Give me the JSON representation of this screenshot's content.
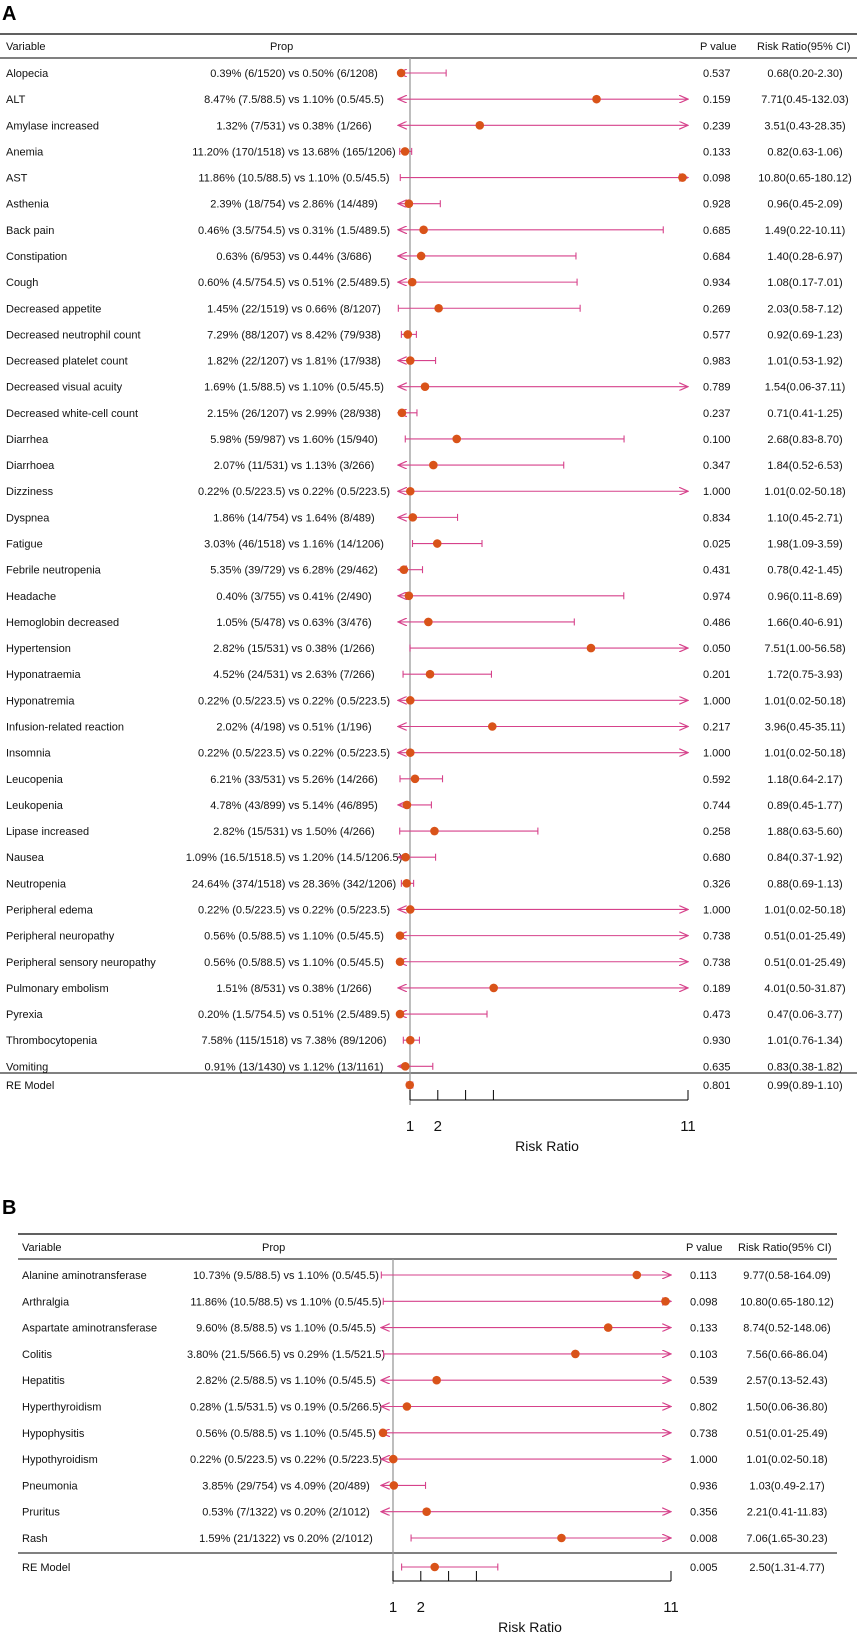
{
  "figure": {
    "aria": "Forest plots of risk ratios for adverse events"
  },
  "colors": {
    "ci": "#d6428b",
    "point": "#d95319",
    "rule": "#000000",
    "ref": "#9a9a9a"
  },
  "chart_data": [
    {
      "type": "forest",
      "panel_label": "A",
      "headers": {
        "variable": "Variable",
        "prop": "Prop",
        "p": "P value",
        "rr": "Risk Ratio(95% CI)"
      },
      "xlabel": "Risk Ratio",
      "ticks": [
        1,
        2,
        3,
        4,
        11
      ],
      "tick_labels": [
        "1",
        "2",
        "",
        "",
        "11"
      ],
      "xlim": [
        1,
        11
      ],
      "rows": [
        {
          "variable": "Alopecia",
          "prop": "0.39% (6/1520) vs 0.50% (6/1208)",
          "p": "0.537",
          "rr_text": "0.68(0.20-2.30)",
          "rr": 0.68,
          "lo": 0.2,
          "hi": 2.3
        },
        {
          "variable": "ALT",
          "prop": "8.47% (7.5/88.5) vs 1.10% (0.5/45.5)",
          "p": "0.159",
          "rr_text": "7.71(0.45-132.03)",
          "rr": 7.71,
          "lo": 0.45,
          "hi": 132.03
        },
        {
          "variable": "Amylase increased",
          "prop": "1.32% (7/531) vs 0.38% (1/266)",
          "p": "0.239",
          "rr_text": "3.51(0.43-28.35)",
          "rr": 3.51,
          "lo": 0.43,
          "hi": 28.35
        },
        {
          "variable": "Anemia",
          "prop": "11.20% (170/1518) vs 13.68% (165/1206)",
          "p": "0.133",
          "rr_text": "0.82(0.63-1.06)",
          "rr": 0.82,
          "lo": 0.63,
          "hi": 1.06
        },
        {
          "variable": "AST",
          "prop": "11.86% (10.5/88.5) vs 1.10% (0.5/45.5)",
          "p": "0.098",
          "rr_text": "10.80(0.65-180.12)",
          "rr": 10.8,
          "lo": 0.65,
          "hi": 180.12
        },
        {
          "variable": "Asthenia",
          "prop": "2.39% (18/754) vs 2.86% (14/489)",
          "p": "0.928",
          "rr_text": "0.96(0.45-2.09)",
          "rr": 0.96,
          "lo": 0.45,
          "hi": 2.09
        },
        {
          "variable": "Back pain",
          "prop": "0.46% (3.5/754.5) vs 0.31% (1.5/489.5)",
          "p": "0.685",
          "rr_text": "1.49(0.22-10.11)",
          "rr": 1.49,
          "lo": 0.22,
          "hi": 10.11
        },
        {
          "variable": "Constipation",
          "prop": "0.63% (6/953) vs 0.44% (3/686)",
          "p": "0.684",
          "rr_text": "1.40(0.28-6.97)",
          "rr": 1.4,
          "lo": 0.28,
          "hi": 6.97
        },
        {
          "variable": "Cough",
          "prop": "0.60% (4.5/754.5) vs 0.51% (2.5/489.5)",
          "p": "0.934",
          "rr_text": "1.08(0.17-7.01)",
          "rr": 1.08,
          "lo": 0.17,
          "hi": 7.01
        },
        {
          "variable": "Decreased appetite",
          "prop": "1.45% (22/1519) vs 0.66% (8/1207)",
          "p": "0.269",
          "rr_text": "2.03(0.58-7.12)",
          "rr": 2.03,
          "lo": 0.58,
          "hi": 7.12
        },
        {
          "variable": "Decreased neutrophil count",
          "prop": "7.29% (88/1207) vs 8.42% (79/938)",
          "p": "0.577",
          "rr_text": "0.92(0.69-1.23)",
          "rr": 0.92,
          "lo": 0.69,
          "hi": 1.23
        },
        {
          "variable": "Decreased platelet count",
          "prop": "1.82% (22/1207) vs 1.81% (17/938)",
          "p": "0.983",
          "rr_text": "1.01(0.53-1.92)",
          "rr": 1.01,
          "lo": 0.53,
          "hi": 1.92
        },
        {
          "variable": "Decreased visual acuity",
          "prop": "1.69% (1.5/88.5) vs 1.10% (0.5/45.5)",
          "p": "0.789",
          "rr_text": "1.54(0.06-37.11)",
          "rr": 1.54,
          "lo": 0.06,
          "hi": 37.11
        },
        {
          "variable": "Decreased white-cell count",
          "prop": "2.15% (26/1207) vs 2.99% (28/938)",
          "p": "0.237",
          "rr_text": "0.71(0.41-1.25)",
          "rr": 0.71,
          "lo": 0.41,
          "hi": 1.25
        },
        {
          "variable": "Diarrhea",
          "prop": "5.98% (59/987) vs 1.60% (15/940)",
          "p": "0.100",
          "rr_text": "2.68(0.83-8.70)",
          "rr": 2.68,
          "lo": 0.83,
          "hi": 8.7
        },
        {
          "variable": "Diarrhoea",
          "prop": "2.07% (11/531) vs 1.13% (3/266)",
          "p": "0.347",
          "rr_text": "1.84(0.52-6.53)",
          "rr": 1.84,
          "lo": 0.52,
          "hi": 6.53
        },
        {
          "variable": "Dizziness",
          "prop": "0.22% (0.5/223.5) vs 0.22% (0.5/223.5)",
          "p": "1.000",
          "rr_text": "1.01(0.02-50.18)",
          "rr": 1.01,
          "lo": 0.02,
          "hi": 50.18
        },
        {
          "variable": "Dyspnea",
          "prop": "1.86% (14/754) vs 1.64% (8/489)",
          "p": "0.834",
          "rr_text": "1.10(0.45-2.71)",
          "rr": 1.1,
          "lo": 0.45,
          "hi": 2.71
        },
        {
          "variable": "Fatigue",
          "prop": "3.03% (46/1518) vs 1.16% (14/1206)",
          "p": "0.025",
          "rr_text": "1.98(1.09-3.59)",
          "rr": 1.98,
          "lo": 1.09,
          "hi": 3.59
        },
        {
          "variable": "Febrile neutropenia",
          "prop": "5.35% (39/729) vs 6.28% (29/462)",
          "p": "0.431",
          "rr_text": "0.78(0.42-1.45)",
          "rr": 0.78,
          "lo": 0.42,
          "hi": 1.45
        },
        {
          "variable": "Headache",
          "prop": "0.40% (3/755) vs 0.41% (2/490)",
          "p": "0.974",
          "rr_text": "0.96(0.11-8.69)",
          "rr": 0.96,
          "lo": 0.11,
          "hi": 8.69
        },
        {
          "variable": "Hemoglobin decreased",
          "prop": "1.05% (5/478) vs 0.63% (3/476)",
          "p": "0.486",
          "rr_text": "1.66(0.40-6.91)",
          "rr": 1.66,
          "lo": 0.4,
          "hi": 6.91
        },
        {
          "variable": "Hypertension",
          "prop": "2.82% (15/531) vs 0.38% (1/266)",
          "p": "0.050",
          "rr_text": "7.51(1.00-56.58)",
          "rr": 7.51,
          "lo": 1.0,
          "hi": 56.58
        },
        {
          "variable": "Hyponatraemia",
          "prop": "4.52% (24/531) vs 2.63% (7/266)",
          "p": "0.201",
          "rr_text": "1.72(0.75-3.93)",
          "rr": 1.72,
          "lo": 0.75,
          "hi": 3.93
        },
        {
          "variable": "Hyponatremia",
          "prop": "0.22% (0.5/223.5) vs 0.22% (0.5/223.5)",
          "p": "1.000",
          "rr_text": "1.01(0.02-50.18)",
          "rr": 1.01,
          "lo": 0.02,
          "hi": 50.18
        },
        {
          "variable": "Infusion-related reaction",
          "prop": "2.02% (4/198) vs 0.51% (1/196)",
          "p": "0.217",
          "rr_text": "3.96(0.45-35.11)",
          "rr": 3.96,
          "lo": 0.45,
          "hi": 35.11
        },
        {
          "variable": "Insomnia",
          "prop": "0.22% (0.5/223.5) vs 0.22% (0.5/223.5)",
          "p": "1.000",
          "rr_text": "1.01(0.02-50.18)",
          "rr": 1.01,
          "lo": 0.02,
          "hi": 50.18
        },
        {
          "variable": "Leucopenia",
          "prop": "6.21% (33/531) vs 5.26% (14/266)",
          "p": "0.592",
          "rr_text": "1.18(0.64-2.17)",
          "rr": 1.18,
          "lo": 0.64,
          "hi": 2.17
        },
        {
          "variable": "Leukopenia",
          "prop": "4.78% (43/899) vs 5.14% (46/895)",
          "p": "0.744",
          "rr_text": "0.89(0.45-1.77)",
          "rr": 0.89,
          "lo": 0.45,
          "hi": 1.77
        },
        {
          "variable": "Lipase increased",
          "prop": "2.82% (15/531) vs 1.50% (4/266)",
          "p": "0.258",
          "rr_text": "1.88(0.63-5.60)",
          "rr": 1.88,
          "lo": 0.63,
          "hi": 5.6
        },
        {
          "variable": "Nausea",
          "prop": "1.09% (16.5/1518.5) vs 1.20% (14.5/1206.5)",
          "p": "0.680",
          "rr_text": "0.84(0.37-1.92)",
          "rr": 0.84,
          "lo": 0.37,
          "hi": 1.92
        },
        {
          "variable": "Neutropenia",
          "prop": "24.64% (374/1518) vs 28.36% (342/1206)",
          "p": "0.326",
          "rr_text": "0.88(0.69-1.13)",
          "rr": 0.88,
          "lo": 0.69,
          "hi": 1.13
        },
        {
          "variable": "Peripheral edema",
          "prop": "0.22% (0.5/223.5) vs 0.22% (0.5/223.5)",
          "p": "1.000",
          "rr_text": "1.01(0.02-50.18)",
          "rr": 1.01,
          "lo": 0.02,
          "hi": 50.18
        },
        {
          "variable": "Peripheral neuropathy",
          "prop": "0.56% (0.5/88.5) vs 1.10% (0.5/45.5)",
          "p": "0.738",
          "rr_text": "0.51(0.01-25.49)",
          "rr": 0.51,
          "lo": 0.01,
          "hi": 25.49
        },
        {
          "variable": "Peripheral sensory neuropathy",
          "prop": "0.56% (0.5/88.5) vs 1.10% (0.5/45.5)",
          "p": "0.738",
          "rr_text": "0.51(0.01-25.49)",
          "rr": 0.51,
          "lo": 0.01,
          "hi": 25.49
        },
        {
          "variable": "Pulmonary embolism",
          "prop": "1.51% (8/531) vs 0.38% (1/266)",
          "p": "0.189",
          "rr_text": "4.01(0.50-31.87)",
          "rr": 4.01,
          "lo": 0.5,
          "hi": 31.87
        },
        {
          "variable": "Pyrexia",
          "prop": "0.20% (1.5/754.5) vs 0.51% (2.5/489.5)",
          "p": "0.473",
          "rr_text": "0.47(0.06-3.77)",
          "rr": 0.47,
          "lo": 0.06,
          "hi": 3.77
        },
        {
          "variable": "Thrombocytopenia",
          "prop": "7.58% (115/1518) vs 7.38% (89/1206)",
          "p": "0.930",
          "rr_text": "1.01(0.76-1.34)",
          "rr": 1.01,
          "lo": 0.76,
          "hi": 1.34
        },
        {
          "variable": "Vomiting",
          "prop": "0.91% (13/1430) vs 1.12% (13/1161)",
          "p": "0.635",
          "rr_text": "0.83(0.38-1.82)",
          "rr": 0.83,
          "lo": 0.38,
          "hi": 1.82
        }
      ],
      "summary": {
        "variable": "RE Model",
        "p": "0.801",
        "rr_text": "0.99(0.89-1.10)",
        "rr": 0.99,
        "lo": 0.89,
        "hi": 1.1
      }
    },
    {
      "type": "forest",
      "panel_label": "B",
      "headers": {
        "variable": "Variable",
        "prop": "Prop",
        "p": "P value",
        "rr": "Risk Ratio(95% CI)"
      },
      "xlabel": "Risk Ratio",
      "ticks": [
        1,
        2,
        3,
        4,
        11
      ],
      "tick_labels": [
        "1",
        "2",
        "",
        "",
        "11"
      ],
      "xlim": [
        1,
        11
      ],
      "rows": [
        {
          "variable": "Alanine aminotransferase",
          "prop": "10.73% (9.5/88.5) vs 1.10% (0.5/45.5)",
          "p": "0.113",
          "rr_text": "9.77(0.58-164.09)",
          "rr": 9.77,
          "lo": 0.58,
          "hi": 164.09
        },
        {
          "variable": "Arthralgia",
          "prop": "11.86% (10.5/88.5) vs 1.10% (0.5/45.5)",
          "p": "0.098",
          "rr_text": "10.80(0.65-180.12)",
          "rr": 10.8,
          "lo": 0.65,
          "hi": 180.12
        },
        {
          "variable": "Aspartate aminotransferase",
          "prop": "9.60% (8.5/88.5) vs 1.10% (0.5/45.5)",
          "p": "0.133",
          "rr_text": "8.74(0.52-148.06)",
          "rr": 8.74,
          "lo": 0.52,
          "hi": 148.06
        },
        {
          "variable": "Colitis",
          "prop": "3.80% (21.5/566.5) vs 0.29% (1.5/521.5)",
          "p": "0.103",
          "rr_text": "7.56(0.66-86.04)",
          "rr": 7.56,
          "lo": 0.66,
          "hi": 86.04
        },
        {
          "variable": "Hepatitis",
          "prop": "2.82% (2.5/88.5) vs 1.10% (0.5/45.5)",
          "p": "0.539",
          "rr_text": "2.57(0.13-52.43)",
          "rr": 2.57,
          "lo": 0.13,
          "hi": 52.43
        },
        {
          "variable": "Hyperthyroidism",
          "prop": "0.28% (1.5/531.5) vs 0.19% (0.5/266.5)",
          "p": "0.802",
          "rr_text": "1.50(0.06-36.80)",
          "rr": 1.5,
          "lo": 0.06,
          "hi": 36.8
        },
        {
          "variable": "Hypophysitis",
          "prop": "0.56% (0.5/88.5) vs 1.10% (0.5/45.5)",
          "p": "0.738",
          "rr_text": "0.51(0.01-25.49)",
          "rr": 0.51,
          "lo": 0.01,
          "hi": 25.49
        },
        {
          "variable": "Hypothyroidism",
          "prop": "0.22% (0.5/223.5) vs 0.22% (0.5/223.5)",
          "p": "1.000",
          "rr_text": "1.01(0.02-50.18)",
          "rr": 1.01,
          "lo": 0.02,
          "hi": 50.18
        },
        {
          "variable": "Pneumonia",
          "prop": "3.85% (29/754) vs 4.09% (20/489)",
          "p": "0.936",
          "rr_text": "1.03(0.49-2.17)",
          "rr": 1.03,
          "lo": 0.49,
          "hi": 2.17
        },
        {
          "variable": "Pruritus",
          "prop": "0.53% (7/1322) vs 0.20% (2/1012)",
          "p": "0.356",
          "rr_text": "2.21(0.41-11.83)",
          "rr": 2.21,
          "lo": 0.41,
          "hi": 11.83
        },
        {
          "variable": "Rash",
          "prop": "1.59% (21/1322) vs 0.20% (2/1012)",
          "p": "0.008",
          "rr_text": "7.06(1.65-30.23)",
          "rr": 7.06,
          "lo": 1.65,
          "hi": 30.23
        }
      ],
      "summary": {
        "variable": "RE Model",
        "p": "0.005",
        "rr_text": "2.50(1.31-4.77)",
        "rr": 2.5,
        "lo": 1.31,
        "hi": 4.77
      }
    }
  ]
}
